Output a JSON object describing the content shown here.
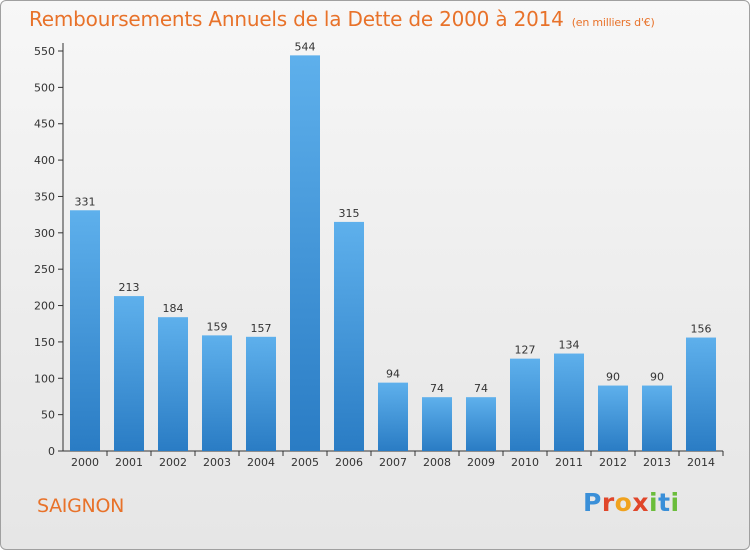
{
  "title": "Remboursements Annuels de la Dette de 2000 à 2014",
  "subtitle": "(en milliers d'€)",
  "commune": "SAIGNON",
  "logo": {
    "text": "Proxiti"
  },
  "colors": {
    "title": "#e8722a",
    "bar_top": "#5eb0ec",
    "bar_bottom": "#2a7cc4"
  },
  "chart_data": {
    "type": "bar",
    "title": "Remboursements Annuels de la Dette de 2000 à 2014",
    "subtitle": "(en milliers d'€)",
    "xlabel": "",
    "ylabel": "",
    "categories": [
      "2000",
      "2001",
      "2002",
      "2003",
      "2004",
      "2005",
      "2006",
      "2007",
      "2008",
      "2009",
      "2010",
      "2011",
      "2012",
      "2013",
      "2014"
    ],
    "values": [
      331,
      213,
      184,
      159,
      157,
      544,
      315,
      94,
      74,
      74,
      127,
      134,
      90,
      90,
      156
    ],
    "ylim": [
      0,
      550
    ],
    "yticks": [
      0,
      50,
      100,
      150,
      200,
      250,
      300,
      350,
      400,
      450,
      500,
      550
    ],
    "grid": false,
    "data_labels": true
  }
}
